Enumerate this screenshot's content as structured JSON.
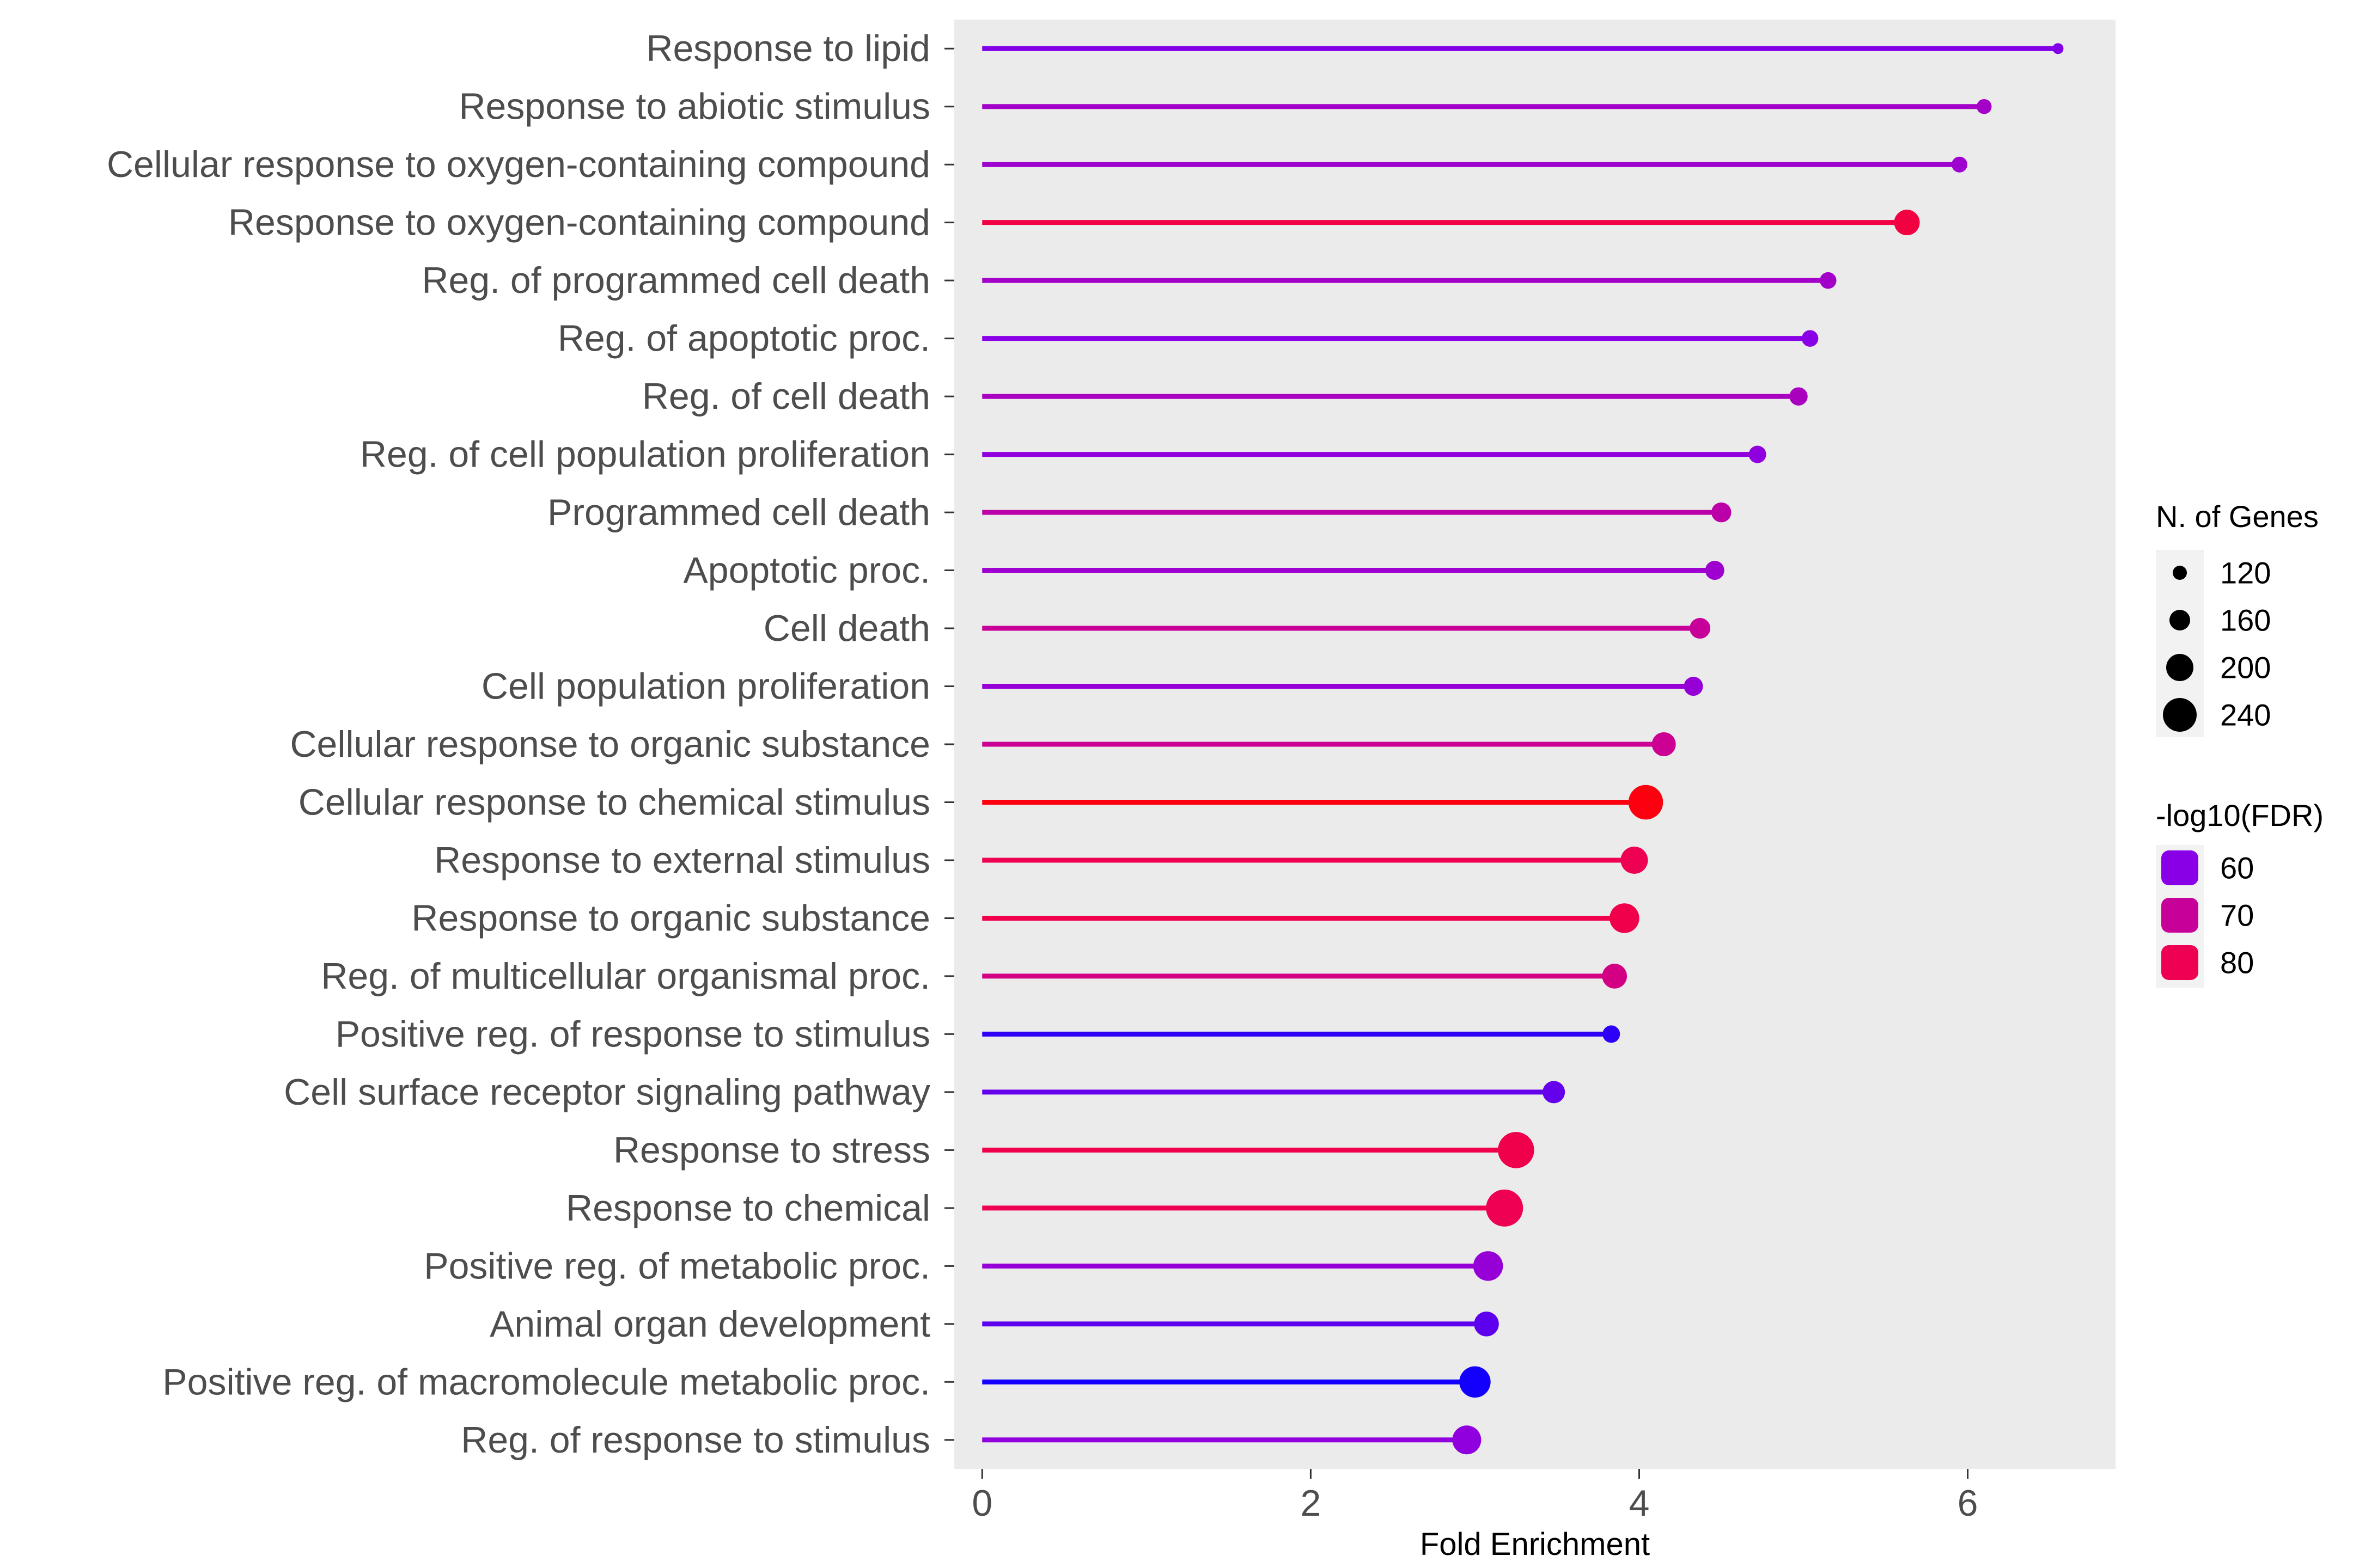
{
  "chart_data": {
    "type": "lollipop",
    "xlabel": "Fold Enrichment",
    "ylabel": "",
    "xlim": [
      -0.17,
      6.9
    ],
    "x_ticks": [
      0,
      2,
      4,
      6
    ],
    "grid": false,
    "legend_position": "right",
    "categories": [
      "Response to lipid",
      "Response to abiotic stimulus",
      "Cellular response to oxygen-containing compound",
      "Response to oxygen-containing compound",
      "Reg. of programmed cell death",
      "Reg. of apoptotic proc.",
      "Reg. of cell death",
      "Reg. of cell population proliferation",
      "Programmed cell death",
      "Apoptotic proc.",
      "Cell death",
      "Cell population proliferation",
      "Cellular response to organic substance",
      "Cellular response to chemical stimulus",
      "Response to external stimulus",
      "Response to organic substance",
      "Reg. of multicellular organismal proc.",
      "Positive reg. of response to stimulus",
      "Cell surface receptor signaling pathway",
      "Response to stress",
      "Response to chemical",
      "Positive reg. of metabolic proc.",
      "Animal organ development",
      "Positive reg. of macromolecule metabolic proc.",
      "Reg. of response to stimulus"
    ],
    "fold_enrichment": [
      6.55,
      6.1,
      5.95,
      5.63,
      5.15,
      5.04,
      4.97,
      4.72,
      4.5,
      4.46,
      4.37,
      4.33,
      4.15,
      4.04,
      3.97,
      3.91,
      3.85,
      3.83,
      3.48,
      3.25,
      3.18,
      3.08,
      3.07,
      3.0,
      2.95
    ],
    "n_genes": [
      100,
      125,
      130,
      190,
      135,
      135,
      145,
      140,
      155,
      150,
      160,
      150,
      180,
      245,
      200,
      215,
      185,
      140,
      170,
      255,
      260,
      215,
      185,
      225,
      210
    ],
    "neg_log10_fdr": [
      59,
      64,
      63,
      82,
      64,
      60,
      65,
      61,
      68,
      63,
      70,
      62,
      71,
      88,
      80,
      81,
      73,
      50,
      56,
      81,
      80,
      62,
      55,
      47,
      61
    ],
    "size_legend": {
      "title": "N. of Genes",
      "values": [
        120,
        160,
        200,
        240
      ],
      "labels": [
        "120",
        "160",
        "200",
        "240"
      ]
    },
    "color_legend": {
      "title": "-log10(FDR)",
      "values": [
        60,
        70,
        80
      ],
      "labels": [
        "60",
        "70",
        "80"
      ]
    },
    "colors": {
      "panel_background": "#ebebeb",
      "axis_text": "#4d4d4d",
      "scale_stops": [
        {
          "value": 45,
          "color": "#0000ff"
        },
        {
          "value": 60,
          "color": "#8a00e6"
        },
        {
          "value": 70,
          "color": "#c8009a"
        },
        {
          "value": 80,
          "color": "#ee0052"
        },
        {
          "value": 90,
          "color": "#ff0000"
        }
      ]
    }
  }
}
